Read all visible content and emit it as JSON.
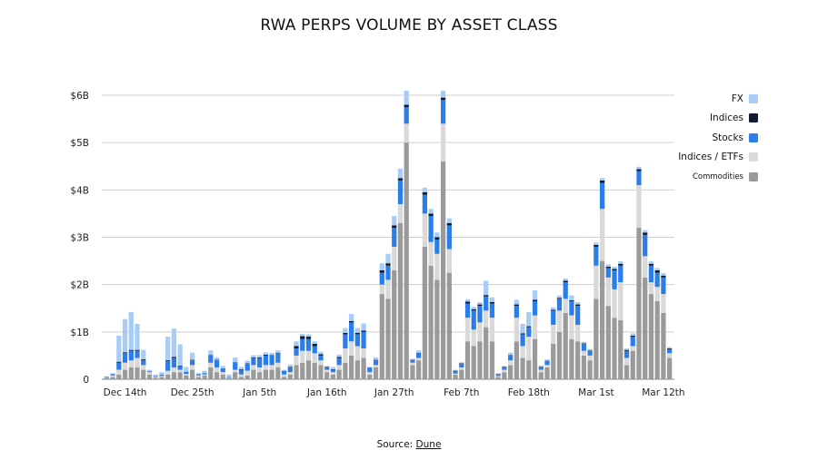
{
  "chart_data": {
    "type": "bar",
    "stacked": true,
    "title": "RWA PERPS VOLUME BY ASSET CLASS",
    "xlabel": "",
    "ylabel": "",
    "ylim": [
      0,
      6
    ],
    "y_unit": "$B",
    "y_ticks": [
      0,
      1,
      2,
      3,
      4,
      5,
      6
    ],
    "y_tick_labels": [
      "0",
      "$1B",
      "$2B",
      "$3B",
      "$4B",
      "$5B",
      "$6B"
    ],
    "x_tick_labels": [
      "Dec 14th",
      "Dec 25th",
      "Jan 5th",
      "Jan 16th",
      "Jan 27th",
      "Feb 7th",
      "Feb 18th",
      "Mar 1st",
      "Mar 12th"
    ],
    "x_tick_indices": [
      3,
      14,
      25,
      36,
      47,
      58,
      69,
      80,
      91
    ],
    "grid": true,
    "legend_position": "top-right",
    "series": [
      {
        "name": "Commodities",
        "color": "#9a9a9a",
        "values": [
          0.02,
          0.05,
          0.1,
          0.2,
          0.25,
          0.25,
          0.2,
          0.1,
          0.03,
          0.05,
          0.1,
          0.15,
          0.15,
          0.08,
          0.2,
          0.05,
          0.08,
          0.25,
          0.15,
          0.1,
          0.02,
          0.15,
          0.05,
          0.08,
          0.2,
          0.15,
          0.2,
          0.2,
          0.25,
          0.05,
          0.1,
          0.3,
          0.35,
          0.4,
          0.35,
          0.3,
          0.15,
          0.1,
          0.2,
          0.35,
          0.5,
          0.4,
          0.45,
          0.1,
          0.25,
          1.8,
          1.7,
          2.3,
          3.3,
          5.0,
          0.3,
          0.4,
          2.8,
          2.4,
          2.1,
          4.6,
          2.25,
          0.1,
          0.2,
          0.8,
          0.7,
          0.8,
          1.1,
          0.8,
          0.05,
          0.15,
          0.3,
          0.8,
          0.45,
          0.4,
          0.85,
          0.15,
          0.25,
          0.75,
          1.0,
          1.4,
          0.85,
          0.8,
          0.5,
          0.4,
          1.7,
          2.5,
          1.55,
          1.3,
          1.25,
          0.3,
          0.6,
          3.2,
          2.15,
          1.8,
          1.65,
          1.4,
          0.45
        ]
      },
      {
        "name": "Indices / ETFs",
        "color": "#d9d9d9",
        "values": [
          0.01,
          0.03,
          0.1,
          0.15,
          0.15,
          0.2,
          0.1,
          0.05,
          0.02,
          0.02,
          0.08,
          0.1,
          0.05,
          0.03,
          0.1,
          0.03,
          0.02,
          0.1,
          0.1,
          0.05,
          0.01,
          0.05,
          0.05,
          0.1,
          0.1,
          0.1,
          0.1,
          0.1,
          0.1,
          0.05,
          0.05,
          0.2,
          0.25,
          0.2,
          0.2,
          0.1,
          0.05,
          0.05,
          0.1,
          0.3,
          0.3,
          0.3,
          0.2,
          0.05,
          0.05,
          0.2,
          0.4,
          0.5,
          0.4,
          0.4,
          0.05,
          0.05,
          0.7,
          0.5,
          0.55,
          0.8,
          0.5,
          0.02,
          0.05,
          0.5,
          0.35,
          0.4,
          0.35,
          0.5,
          0.02,
          0.05,
          0.1,
          0.5,
          0.25,
          0.5,
          0.5,
          0.05,
          0.05,
          0.4,
          0.45,
          0.3,
          0.5,
          0.35,
          0.1,
          0.1,
          0.7,
          1.1,
          0.6,
          0.6,
          0.8,
          0.15,
          0.1,
          0.9,
          0.45,
          0.25,
          0.3,
          0.4,
          0.1
        ]
      },
      {
        "name": "Stocks",
        "color": "#2b7de9",
        "values": [
          0.02,
          0.03,
          0.15,
          0.2,
          0.2,
          0.15,
          0.1,
          0.02,
          0.02,
          0.03,
          0.2,
          0.2,
          0.08,
          0.05,
          0.1,
          0.03,
          0.03,
          0.15,
          0.15,
          0.08,
          0.02,
          0.15,
          0.1,
          0.15,
          0.15,
          0.2,
          0.2,
          0.2,
          0.2,
          0.08,
          0.1,
          0.15,
          0.25,
          0.25,
          0.15,
          0.1,
          0.05,
          0.05,
          0.15,
          0.3,
          0.4,
          0.25,
          0.35,
          0.08,
          0.1,
          0.25,
          0.3,
          0.4,
          0.5,
          0.35,
          0.05,
          0.1,
          0.4,
          0.55,
          0.3,
          0.5,
          0.5,
          0.05,
          0.08,
          0.3,
          0.4,
          0.35,
          0.3,
          0.3,
          0.03,
          0.05,
          0.1,
          0.25,
          0.25,
          0.2,
          0.3,
          0.05,
          0.08,
          0.3,
          0.25,
          0.35,
          0.3,
          0.4,
          0.15,
          0.1,
          0.4,
          0.55,
          0.2,
          0.4,
          0.35,
          0.15,
          0.2,
          0.3,
          0.45,
          0.35,
          0.3,
          0.35,
          0.08
        ]
      },
      {
        "name": "Indices",
        "color": "#0e1b33",
        "values": [
          0,
          0,
          0.02,
          0.02,
          0.02,
          0.02,
          0.02,
          0,
          0,
          0,
          0.02,
          0.02,
          0.01,
          0,
          0.01,
          0,
          0,
          0.01,
          0.01,
          0,
          0,
          0.01,
          0.01,
          0.01,
          0.01,
          0.01,
          0.02,
          0.01,
          0.01,
          0,
          0.01,
          0.05,
          0.06,
          0.05,
          0.05,
          0.03,
          0.01,
          0.01,
          0.02,
          0.03,
          0.03,
          0.03,
          0.03,
          0.01,
          0.01,
          0.05,
          0.05,
          0.05,
          0.05,
          0.05,
          0.01,
          0.01,
          0.05,
          0.05,
          0.05,
          0.05,
          0.05,
          0.01,
          0.01,
          0.04,
          0.03,
          0.03,
          0.03,
          0.03,
          0.01,
          0.01,
          0.01,
          0.03,
          0.02,
          0.02,
          0.03,
          0.01,
          0.01,
          0.02,
          0.02,
          0.03,
          0.02,
          0.03,
          0.01,
          0.01,
          0.04,
          0.05,
          0.03,
          0.03,
          0.04,
          0.02,
          0.02,
          0.04,
          0.05,
          0.04,
          0.05,
          0.04,
          0.02
        ]
      },
      {
        "name": "FX",
        "color": "#a9ccf6",
        "values": [
          0.01,
          0.02,
          0.55,
          0.7,
          0.8,
          0.55,
          0.2,
          0.03,
          0.03,
          0.05,
          0.5,
          0.6,
          0.45,
          0.1,
          0.15,
          0.02,
          0.05,
          0.1,
          0.05,
          0.05,
          0.05,
          0.1,
          0.05,
          0.05,
          0.05,
          0.05,
          0.05,
          0.05,
          0.05,
          0.02,
          0.05,
          0.1,
          0.05,
          0.05,
          0.05,
          0.05,
          0.02,
          0.05,
          0.05,
          0.1,
          0.15,
          0.1,
          0.15,
          0.02,
          0.05,
          0.15,
          0.2,
          0.2,
          0.2,
          0.3,
          0.02,
          0.05,
          0.1,
          0.1,
          0.1,
          0.15,
          0.1,
          0.02,
          0.02,
          0.05,
          0.05,
          0.05,
          0.3,
          0.1,
          0.02,
          0.02,
          0.05,
          0.1,
          0.2,
          0.3,
          0.2,
          0.03,
          0.03,
          0.05,
          0.05,
          0.05,
          0.1,
          0.05,
          0.03,
          0.03,
          0.05,
          0.05,
          0.05,
          0.05,
          0.05,
          0.03,
          0.05,
          0.05,
          0.05,
          0.05,
          0.05,
          0.05,
          0.03
        ]
      }
    ]
  },
  "legend": [
    {
      "label": "FX",
      "color": "#a9ccf6"
    },
    {
      "label": "Indices",
      "color": "#0e1b33"
    },
    {
      "label": "Stocks",
      "color": "#2b7de9"
    },
    {
      "label": "Indices / ETFs",
      "color": "#d9d9d9"
    },
    {
      "label": "Commodities",
      "color": "#9a9a9a"
    }
  ],
  "source": {
    "prefix": "Source: ",
    "link": "Dune"
  }
}
